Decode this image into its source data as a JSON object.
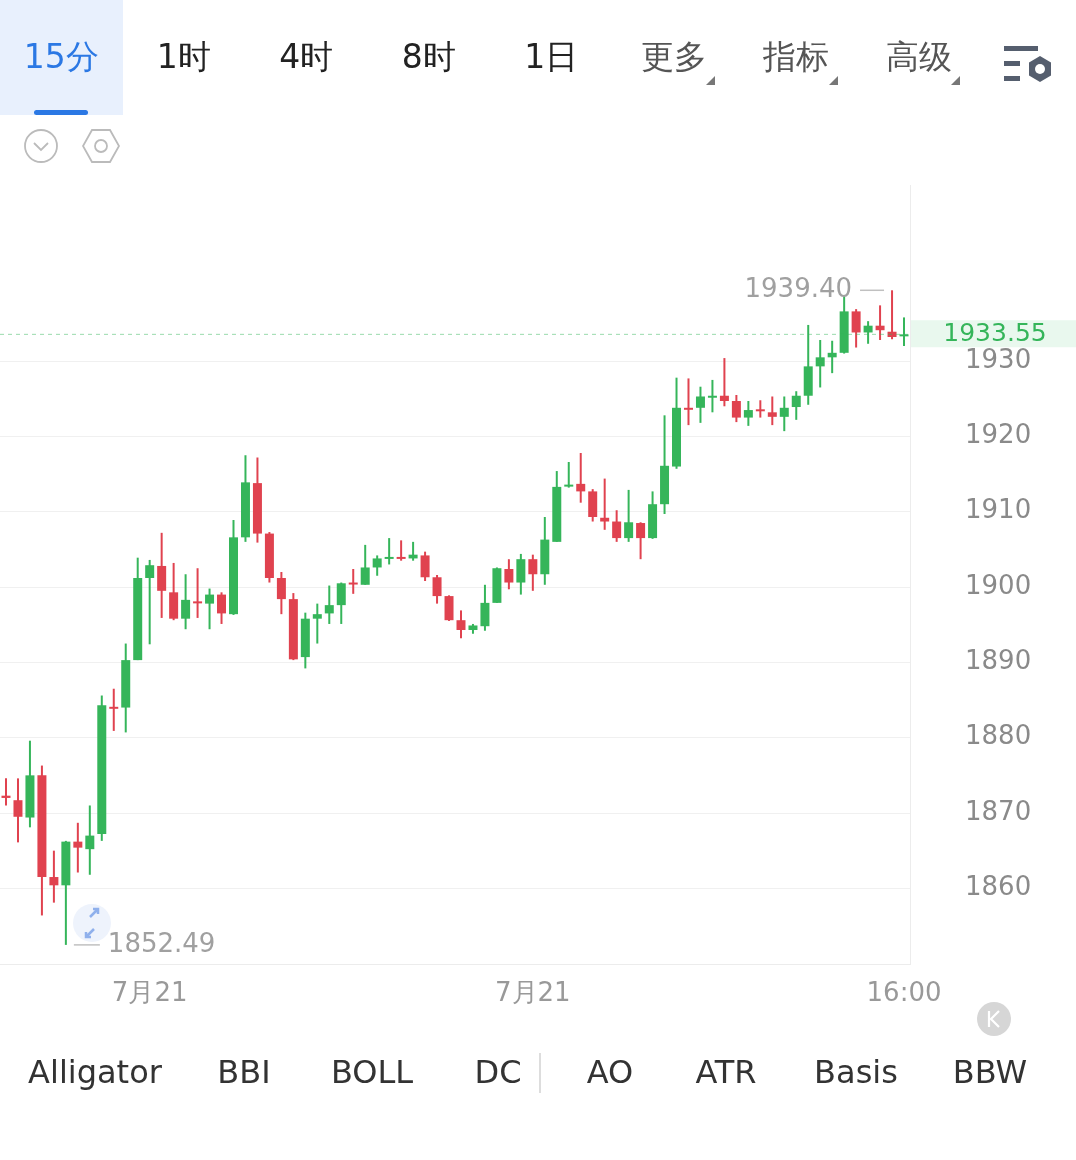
{
  "chart_data": [
    {
      "type": "other",
      "annotations": [
        "15分",
        "1时",
        "4时",
        "8时",
        "1日",
        "更多",
        "指标",
        "高级"
      ]
    },
    {
      "type": "candlestick",
      "categories": [
        null,
        null,
        null,
        null,
        null,
        null,
        null,
        null,
        null,
        null,
        null,
        null,
        "7月21",
        null,
        null,
        null,
        null,
        null,
        null,
        null,
        null,
        null,
        null,
        null,
        null,
        null,
        null,
        null,
        null,
        null,
        null,
        null,
        null,
        null,
        null,
        null,
        null,
        null,
        null,
        null,
        null,
        null,
        null,
        null,
        "7月21",
        null,
        null,
        null,
        null,
        null,
        null,
        null,
        null,
        null,
        null,
        null,
        null,
        null,
        null,
        null,
        null,
        null,
        null,
        null,
        null,
        null,
        null,
        null,
        null,
        null,
        null,
        null,
        null,
        null,
        null,
        "16:00"
      ],
      "ohlc": [
        [
          1872.3,
          1874.6,
          1871.0,
          1872.0
        ],
        [
          1871.7,
          1874.6,
          1866.1,
          1869.5
        ],
        [
          1869.4,
          1879.6,
          1868.1,
          1875.0
        ],
        [
          1875.0,
          1876.3,
          1856.4,
          1861.5
        ],
        [
          1861.5,
          1865.0,
          1858.1,
          1860.4
        ],
        [
          1860.4,
          1866.3,
          1852.49,
          1866.2
        ],
        [
          1866.2,
          1868.7,
          1862.1,
          1865.4
        ],
        [
          1865.2,
          1871.0,
          1861.8,
          1867.0
        ],
        [
          1867.2,
          1885.6,
          1866.3,
          1884.3
        ],
        [
          1884.1,
          1886.5,
          1880.9,
          1884.0
        ],
        [
          1884.0,
          1892.5,
          1880.7,
          1890.3
        ],
        [
          1890.3,
          1903.9,
          1890.3,
          1901.2
        ],
        [
          1901.2,
          1903.6,
          1892.4,
          1902.9
        ],
        [
          1902.8,
          1907.2,
          1895.9,
          1899.5
        ],
        [
          1899.3,
          1903.2,
          1895.6,
          1895.8
        ],
        [
          1895.8,
          1901.7,
          1894.4,
          1898.3
        ],
        [
          1898.1,
          1902.5,
          1895.9,
          1898.0
        ],
        [
          1897.8,
          1899.8,
          1894.4,
          1899.0
        ],
        [
          1899.0,
          1899.3,
          1895.1,
          1896.5
        ],
        [
          1896.4,
          1908.9,
          1896.3,
          1906.6
        ],
        [
          1906.6,
          1917.5,
          1906.0,
          1913.9
        ],
        [
          1913.8,
          1917.2,
          1905.9,
          1907.1
        ],
        [
          1907.1,
          1907.3,
          1900.6,
          1901.2
        ],
        [
          1901.2,
          1902.0,
          1896.4,
          1898.4
        ],
        [
          1898.4,
          1899.2,
          1890.3,
          1890.4
        ],
        [
          1890.7,
          1896.6,
          1889.2,
          1895.8
        ],
        [
          1895.8,
          1897.8,
          1892.5,
          1896.4
        ],
        [
          1896.5,
          1900.2,
          1895.1,
          1897.6
        ],
        [
          1897.6,
          1900.6,
          1895.1,
          1900.5
        ],
        [
          1900.6,
          1902.4,
          1899.1,
          1900.5
        ],
        [
          1900.3,
          1905.6,
          1900.3,
          1902.6
        ],
        [
          1902.6,
          1904.2,
          1901.5,
          1903.8
        ],
        [
          1903.9,
          1906.5,
          1903.0,
          1904.0
        ],
        [
          1904.0,
          1906.2,
          1903.5,
          1903.9
        ],
        [
          1903.8,
          1906.0,
          1903.5,
          1904.3
        ],
        [
          1904.2,
          1904.7,
          1900.8,
          1901.3
        ],
        [
          1901.3,
          1901.6,
          1897.8,
          1898.8
        ],
        [
          1898.8,
          1898.9,
          1895.5,
          1895.6
        ],
        [
          1895.6,
          1896.9,
          1893.2,
          1894.3
        ],
        [
          1894.3,
          1895.1,
          1893.8,
          1894.9
        ],
        [
          1894.8,
          1900.3,
          1894.2,
          1897.9
        ],
        [
          1897.9,
          1902.6,
          1897.9,
          1902.5
        ],
        [
          1902.4,
          1903.7,
          1899.7,
          1900.6
        ],
        [
          1900.6,
          1904.4,
          1899.0,
          1903.7
        ],
        [
          1903.7,
          1904.3,
          1899.5,
          1901.7
        ],
        [
          1901.7,
          1909.3,
          1900.3,
          1906.3
        ],
        [
          1906.0,
          1915.4,
          1906.0,
          1913.3
        ],
        [
          1913.4,
          1916.6,
          1913.2,
          1913.6
        ],
        [
          1913.7,
          1917.8,
          1911.2,
          1912.7
        ],
        [
          1912.7,
          1913.0,
          1908.7,
          1909.3
        ],
        [
          1909.2,
          1914.4,
          1907.6,
          1908.7
        ],
        [
          1908.7,
          1910.2,
          1906.0,
          1906.5
        ],
        [
          1906.5,
          1912.9,
          1906.0,
          1908.6
        ],
        [
          1908.5,
          1908.6,
          1903.7,
          1906.5
        ],
        [
          1906.5,
          1912.7,
          1906.4,
          1911.0
        ],
        [
          1911.0,
          1922.8,
          1909.7,
          1916.1
        ],
        [
          1916.0,
          1927.8,
          1915.7,
          1923.8
        ],
        [
          1923.8,
          1927.7,
          1921.5,
          1923.7
        ],
        [
          1923.8,
          1926.6,
          1921.8,
          1925.3
        ],
        [
          1925.3,
          1927.5,
          1923.2,
          1925.4
        ],
        [
          1925.4,
          1930.4,
          1924.0,
          1924.7
        ],
        [
          1924.7,
          1925.5,
          1921.9,
          1922.5
        ],
        [
          1922.5,
          1924.7,
          1921.4,
          1923.5
        ],
        [
          1923.6,
          1924.8,
          1922.5,
          1923.5
        ],
        [
          1923.2,
          1925.3,
          1921.5,
          1922.6
        ],
        [
          1922.6,
          1925.3,
          1920.7,
          1923.8
        ],
        [
          1923.9,
          1926.0,
          1922.2,
          1925.4
        ],
        [
          1925.4,
          1934.8,
          1924.2,
          1929.3
        ],
        [
          1929.3,
          1932.8,
          1926.5,
          1930.5
        ],
        [
          1930.5,
          1932.7,
          1928.4,
          1931.1
        ],
        [
          1931.1,
          1938.7,
          1931.0,
          1936.6
        ],
        [
          1936.6,
          1936.9,
          1931.8,
          1933.8
        ],
        [
          1933.8,
          1935.3,
          1932.3,
          1934.7
        ],
        [
          1934.7,
          1937.4,
          1932.8,
          1934.1
        ],
        [
          1933.9,
          1939.4,
          1932.9,
          1933.2
        ],
        [
          1933.4,
          1935.8,
          1932.0,
          1933.55
        ]
      ],
      "colors": [
        "#e0424f",
        "#e0424f",
        "#35b55a",
        "#e0424f",
        "#e0424f",
        "#35b55a",
        "#e0424f",
        "#35b55a",
        "#35b55a",
        "#e0424f",
        "#35b55a",
        "#35b55a",
        "#35b55a",
        "#e0424f",
        "#e0424f",
        "#35b55a",
        "#e0424f",
        "#35b55a",
        "#e0424f",
        "#35b55a",
        "#35b55a",
        "#e0424f",
        "#e0424f",
        "#e0424f",
        "#e0424f",
        "#35b55a",
        "#35b55a",
        "#35b55a",
        "#35b55a",
        "#e0424f",
        "#35b55a",
        "#35b55a",
        "#35b55a",
        "#e0424f",
        "#35b55a",
        "#e0424f",
        "#e0424f",
        "#e0424f",
        "#e0424f",
        "#35b55a",
        "#35b55a",
        "#35b55a",
        "#e0424f",
        "#35b55a",
        "#e0424f",
        "#35b55a",
        "#35b55a",
        "#35b55a",
        "#e0424f",
        "#e0424f",
        "#e0424f",
        "#e0424f",
        "#35b55a",
        "#e0424f",
        "#35b55a",
        "#35b55a",
        "#35b55a",
        "#e0424f",
        "#35b55a",
        "#35b55a",
        "#e0424f",
        "#e0424f",
        "#35b55a",
        "#e0424f",
        "#e0424f",
        "#35b55a",
        "#35b55a",
        "#35b55a",
        "#35b55a",
        "#35b55a",
        "#35b55a",
        "#e0424f",
        "#35b55a",
        "#e0424f",
        "#e0424f",
        "#35b55a"
      ],
      "ylim": [
        1849.9,
        1953.3
      ],
      "yticks": [
        1860,
        1870,
        1880,
        1890,
        1900,
        1910,
        1920,
        1930
      ],
      "grid": "y",
      "ref_lines": [
        {
          "axis": "y",
          "value": 1933.55,
          "label": "1933.55",
          "color": "#35b55a"
        }
      ],
      "annotations": [
        "1939.40",
        "1852.49"
      ]
    },
    {
      "type": "other",
      "annotations": [
        "Alligator",
        "BBI",
        "BOLL",
        "DC",
        "AO",
        "ATR",
        "Basis",
        "BBW"
      ]
    }
  ]
}
